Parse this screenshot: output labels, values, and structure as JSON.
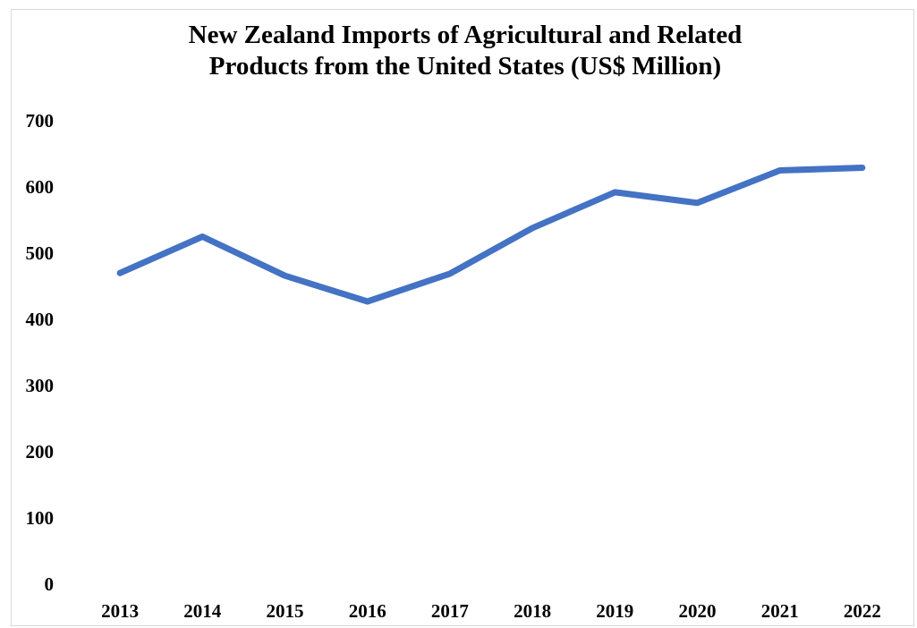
{
  "chart_data": {
    "type": "line",
    "title_lines": [
      "New Zealand Imports of Agricultural and Related",
      "Products from the United States (US$ Million)"
    ],
    "xlabel": "",
    "ylabel": "",
    "categories": [
      "2013",
      "2014",
      "2015",
      "2016",
      "2017",
      "2018",
      "2019",
      "2020",
      "2021",
      "2022"
    ],
    "series": [
      {
        "values": [
          470,
          525,
          466,
          427,
          469,
          538,
          592,
          576,
          625,
          629
        ]
      }
    ],
    "ylim": [
      0,
      700
    ],
    "yticks": [
      0,
      100,
      200,
      300,
      400,
      500,
      600,
      700
    ],
    "grid": false,
    "legend": "none",
    "line_color": "#4472c4"
  }
}
